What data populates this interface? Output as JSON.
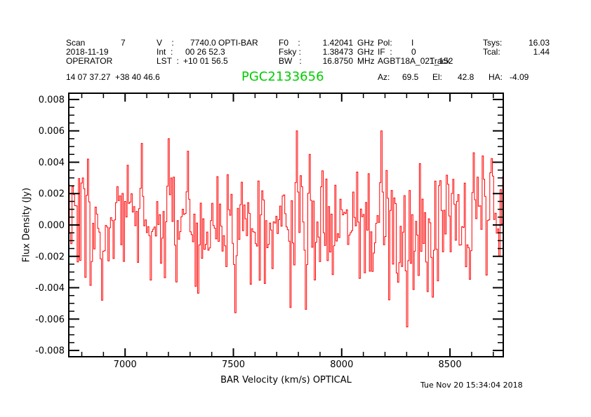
{
  "colors": {
    "background": "#ffffff",
    "text": "#000000",
    "frame": "#000000",
    "spectrum": "#ff0000",
    "source_name": "#00cc00"
  },
  "header": {
    "row1": {
      "scan_label": "Scan",
      "scan_value": "7",
      "v_label": "V    :",
      "v_value": "7740.0 OPTI-BAR",
      "f0_label": "F0    :",
      "f0_value": "1.42041",
      "f0_unit": "GHz",
      "pol_label": "Pol:",
      "pol_value": "I",
      "tsys_label": "Tsys:",
      "tsys_value": "16.03"
    },
    "row2": {
      "date": "2018-11-19",
      "int_label": "Int  :",
      "int_value": "00 26 52.3",
      "fsky_label": "Fsky :",
      "fsky_value": "1.38473",
      "fsky_unit": "GHz",
      "if_label": "IF  :",
      "if_value": "0",
      "tcal_label": "Tcal:",
      "tcal_value": "1.44"
    },
    "row3": {
      "observer": "OPERATOR",
      "lst_label": "LST  :",
      "lst_value": "+10 01 56.5",
      "bw_label": "BW   :",
      "bw_value": "16.8750",
      "bw_unit": "MHz",
      "project": "AGBT18A_021_152",
      "procedure": "Track"
    },
    "row4": {
      "radec": "14 07 37.27  +38 40 46.6",
      "source": "PGC2133656",
      "az_label": "Az:",
      "az_value": "69.5",
      "el_label": "El:",
      "el_value": "42.8",
      "ha_label": "HA:",
      "ha_value": "-4.09"
    }
  },
  "footer": {
    "timestamp": "Tue Nov 20 15:34:04 2018"
  },
  "chart_data": {
    "type": "line",
    "title": "PGC2133656",
    "xlabel": "BAR Velocity (km/s) OPTICAL",
    "ylabel": "Flux Density (Jy)",
    "xlim": [
      6740,
      8746
    ],
    "ylim": [
      -0.0084,
      0.0084
    ],
    "xticks": [
      7000,
      7500,
      8000,
      8500
    ],
    "xtick_labels": [
      "7000",
      "7500",
      "8000",
      "8500"
    ],
    "x_minor_step": 100,
    "yticks": [
      0.008,
      0.006,
      0.004,
      0.002,
      0.0,
      -0.002,
      -0.004,
      -0.006,
      -0.008
    ],
    "ytick_labels": [
      "0.008",
      "0.006",
      "0.004",
      "0.002",
      "0.000",
      "-0.002",
      "-0.004",
      "-0.006",
      "-0.008"
    ],
    "y_minor_step": 0.0005,
    "grid": false,
    "legend": false,
    "line_color": "#ff0000",
    "series": [
      {
        "name": "spectrum",
        "kind": "gaussian-noise-approximation",
        "n_points": 340,
        "mean_jy": 0.0,
        "sigma_jy": 0.0018,
        "clip_jy": 0.006,
        "seed": 20181119
      }
    ],
    "features": [
      {
        "v": 6830,
        "flux": 0.0042
      },
      {
        "v": 6893,
        "flux": -0.0048
      },
      {
        "v": 7075,
        "flux": 0.0052
      },
      {
        "v": 7200,
        "flux": 0.0055
      },
      {
        "v": 7290,
        "flux": 0.0047
      },
      {
        "v": 7510,
        "flux": -0.0056
      },
      {
        "v": 7795,
        "flux": 0.006
      },
      {
        "v": 7850,
        "flux": 0.0045
      },
      {
        "v": 8185,
        "flux": 0.006
      },
      {
        "v": 8300,
        "flux": -0.0065
      },
      {
        "v": 8420,
        "flux": -0.0046
      },
      {
        "v": 8610,
        "flux": 0.0046
      }
    ]
  }
}
